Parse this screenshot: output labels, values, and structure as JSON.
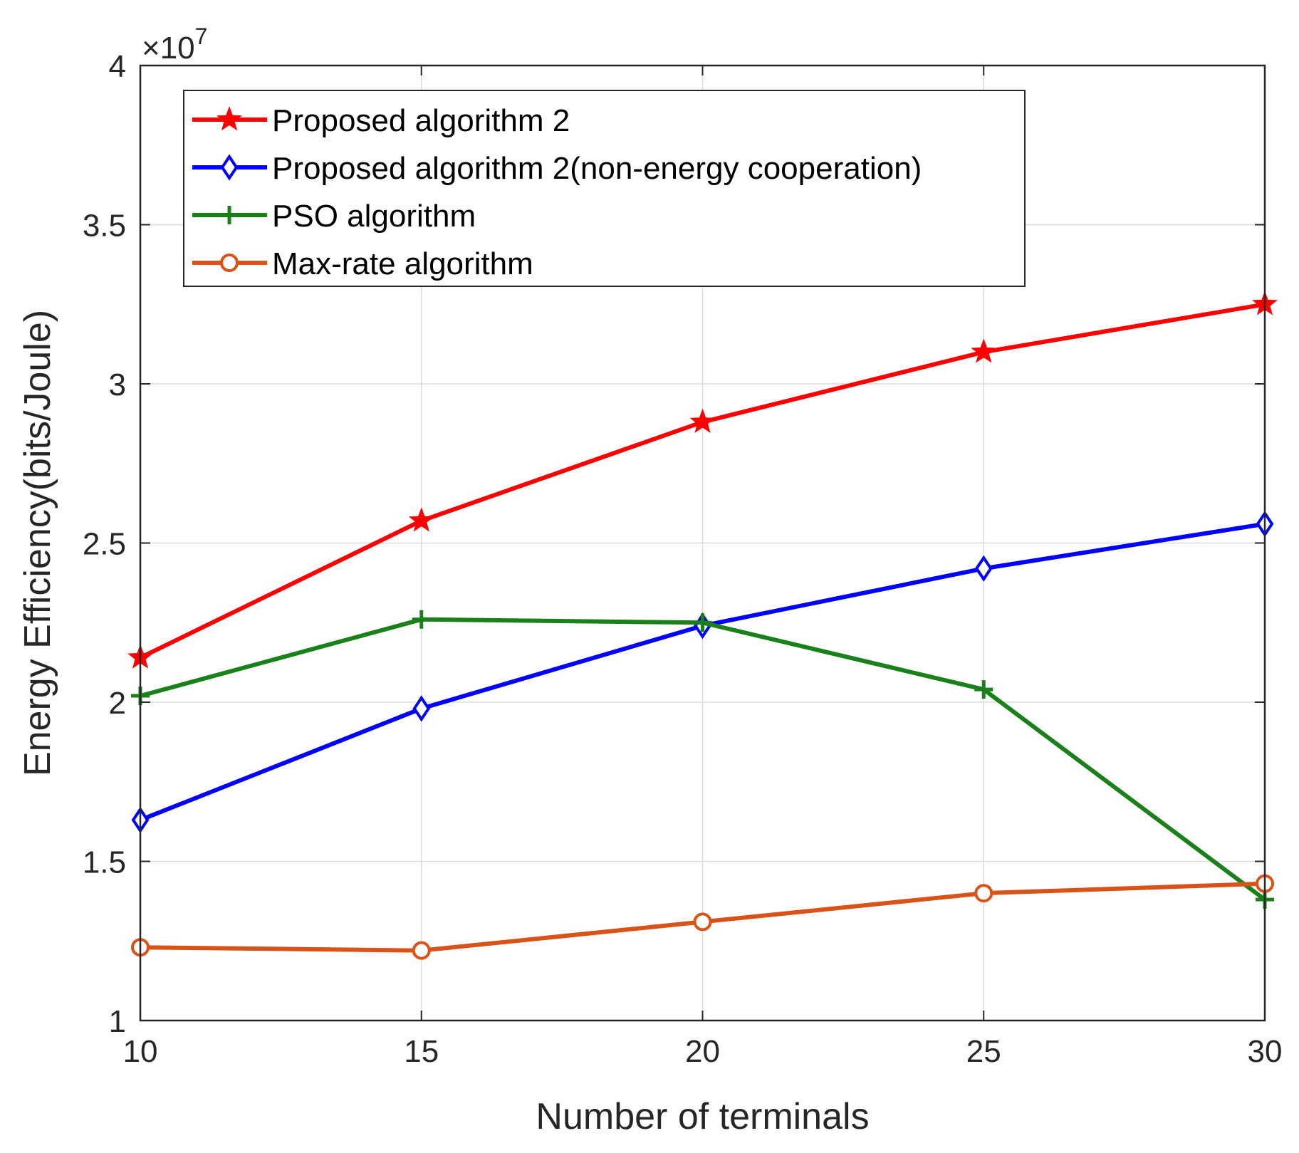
{
  "chart_data": {
    "type": "line",
    "title": "",
    "xlabel": "Number of terminals",
    "ylabel": "Energy Efficiency(bits/Joule)",
    "y_exponent_label": "×10",
    "y_exponent_power": "7",
    "xlim": [
      10,
      30
    ],
    "ylim": [
      1,
      4
    ],
    "grid": true,
    "legend_position": "top-left",
    "x": [
      10,
      15,
      20,
      25,
      30
    ],
    "x_tick_labels": [
      "10",
      "15",
      "20",
      "25",
      "30"
    ],
    "y_ticks": [
      1,
      1.5,
      2,
      2.5,
      3,
      3.5,
      4
    ],
    "y_tick_labels": [
      "1",
      "1.5",
      "2",
      "2.5",
      "3",
      "3.5",
      "4"
    ],
    "series": [
      {
        "name": "Proposed algorithm 2",
        "color": "#ff0000",
        "marker": "star",
        "values": [
          2.14,
          2.57,
          2.88,
          3.1,
          3.25
        ]
      },
      {
        "name": "Proposed algorithm 2(non-energy cooperation)",
        "color": "#0000ff",
        "marker": "diamond",
        "values": [
          1.63,
          1.98,
          2.24,
          2.42,
          2.56
        ]
      },
      {
        "name": "PSO algorithm",
        "color": "#1a801a",
        "marker": "plus",
        "values": [
          2.02,
          2.26,
          2.25,
          2.04,
          1.38
        ]
      },
      {
        "name": "Max-rate algorithm",
        "color": "#d95319",
        "marker": "circle",
        "values": [
          1.23,
          1.22,
          1.31,
          1.4,
          1.43
        ]
      }
    ]
  }
}
